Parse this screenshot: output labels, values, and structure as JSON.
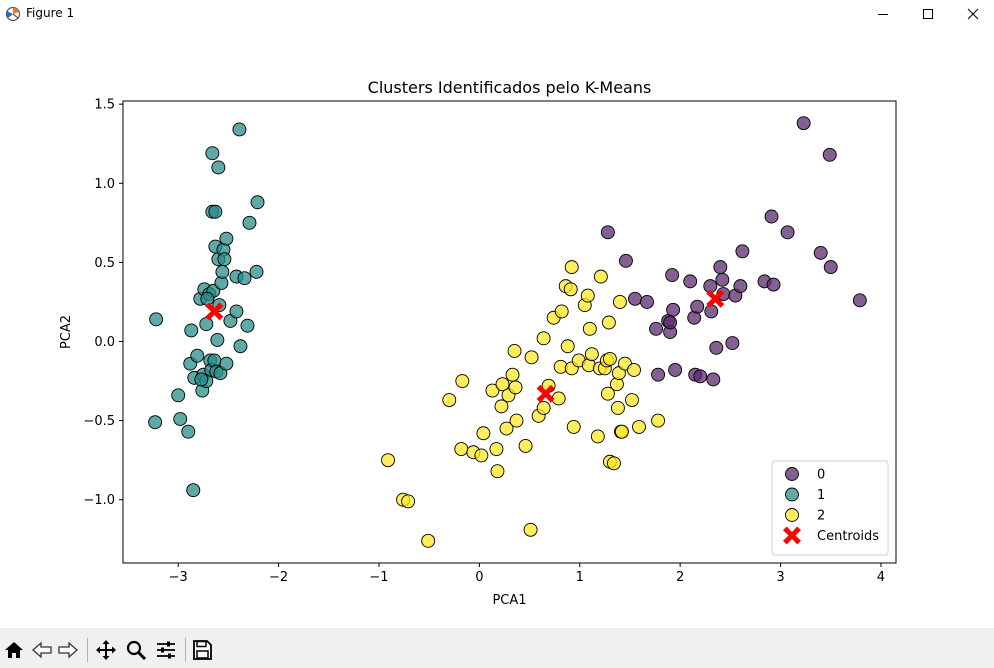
{
  "window": {
    "title": "Figure 1",
    "icons": [
      "app-icon",
      "minimize-icon",
      "maximize-icon",
      "close-icon"
    ]
  },
  "toolbar": {
    "tools": [
      {
        "name": "home-icon"
      },
      {
        "name": "back-icon"
      },
      {
        "name": "forward-icon"
      },
      {
        "name": "pan-icon"
      },
      {
        "name": "zoom-icon"
      },
      {
        "name": "configure-subplots-icon"
      },
      {
        "name": "save-icon"
      }
    ]
  },
  "colors": {
    "cluster0": "#5b2a6e",
    "cluster1": "#2a8c8a",
    "cluster2": "#fde725",
    "centroid": "#ff0000"
  },
  "chart_data": {
    "type": "scatter",
    "title": "Clusters Identificados pelo K-Means",
    "xlabel": "PCA1",
    "ylabel": "PCA2",
    "xlim": [
      -3.55,
      4.15
    ],
    "ylim": [
      -1.4,
      1.52
    ],
    "xticks": [
      -3,
      -2,
      -1,
      0,
      1,
      2,
      3,
      4
    ],
    "yticks": [
      -1.0,
      -0.5,
      0.0,
      0.5,
      1.0,
      1.5
    ],
    "xtick_labels": [
      "−3",
      "−2",
      "−1",
      "0",
      "1",
      "2",
      "3",
      "4"
    ],
    "ytick_labels": [
      "−1.0",
      "−0.5",
      "0.0",
      "0.5",
      "1.0",
      "1.5"
    ],
    "grid": false,
    "legend_position": "lower right",
    "series": [
      {
        "name": "0",
        "color": "#5b2a6e",
        "points": [
          [
            1.28,
            0.69
          ],
          [
            1.46,
            0.51
          ],
          [
            1.55,
            0.27
          ],
          [
            1.67,
            0.25
          ],
          [
            1.76,
            0.08
          ],
          [
            1.88,
            0.13
          ],
          [
            1.9,
            0.06
          ],
          [
            1.92,
            0.42
          ],
          [
            1.93,
            0.2
          ],
          [
            1.95,
            -0.18
          ],
          [
            2.1,
            0.38
          ],
          [
            2.14,
            0.15
          ],
          [
            2.15,
            -0.21
          ],
          [
            2.17,
            0.22
          ],
          [
            2.3,
            0.35
          ],
          [
            2.31,
            0.19
          ],
          [
            2.33,
            -0.24
          ],
          [
            2.36,
            -0.04
          ],
          [
            2.4,
            0.47
          ],
          [
            2.42,
            0.39
          ],
          [
            2.43,
            0.3
          ],
          [
            2.52,
            -0.01
          ],
          [
            2.55,
            0.29
          ],
          [
            2.6,
            0.35
          ],
          [
            2.62,
            0.57
          ],
          [
            2.84,
            0.38
          ],
          [
            2.91,
            0.79
          ],
          [
            2.93,
            0.36
          ],
          [
            3.07,
            0.69
          ],
          [
            3.23,
            1.38
          ],
          [
            3.4,
            0.56
          ],
          [
            3.49,
            1.18
          ],
          [
            3.5,
            0.47
          ],
          [
            3.79,
            0.26
          ],
          [
            1.78,
            -0.21
          ],
          [
            2.2,
            -0.22
          ],
          [
            1.9,
            0.12
          ]
        ]
      },
      {
        "name": "1",
        "color": "#2a8c8a",
        "points": [
          [
            -3.22,
            0.14
          ],
          [
            -3.23,
            -0.51
          ],
          [
            -3.0,
            -0.34
          ],
          [
            -2.98,
            -0.49
          ],
          [
            -2.9,
            -0.57
          ],
          [
            -2.88,
            -0.14
          ],
          [
            -2.87,
            0.07
          ],
          [
            -2.85,
            -0.94
          ],
          [
            -2.84,
            -0.23
          ],
          [
            -2.81,
            -0.09
          ],
          [
            -2.78,
            0.27
          ],
          [
            -2.76,
            -0.31
          ],
          [
            -2.75,
            -0.21
          ],
          [
            -2.74,
            0.33
          ],
          [
            -2.72,
            0.11
          ],
          [
            -2.72,
            -0.25
          ],
          [
            -2.69,
            0.3
          ],
          [
            -2.68,
            -0.12
          ],
          [
            -2.67,
            -0.18
          ],
          [
            -2.66,
            0.82
          ],
          [
            -2.66,
            1.19
          ],
          [
            -2.65,
            0.32
          ],
          [
            -2.64,
            -0.12
          ],
          [
            -2.63,
            0.82
          ],
          [
            -2.63,
            0.6
          ],
          [
            -2.62,
            -0.19
          ],
          [
            -2.61,
            0.01
          ],
          [
            -2.6,
            1.1
          ],
          [
            -2.6,
            0.52
          ],
          [
            -2.59,
            0.23
          ],
          [
            -2.58,
            -0.2
          ],
          [
            -2.57,
            0.37
          ],
          [
            -2.56,
            0.44
          ],
          [
            -2.55,
            0.58
          ],
          [
            -2.54,
            0.52
          ],
          [
            -2.52,
            0.65
          ],
          [
            -2.52,
            -0.14
          ],
          [
            -2.48,
            0.13
          ],
          [
            -2.42,
            0.41
          ],
          [
            -2.42,
            0.19
          ],
          [
            -2.39,
            1.34
          ],
          [
            -2.38,
            -0.03
          ],
          [
            -2.34,
            0.4
          ],
          [
            -2.31,
            0.1
          ],
          [
            -2.29,
            0.75
          ],
          [
            -2.22,
            0.44
          ],
          [
            -2.21,
            0.88
          ],
          [
            -2.71,
            0.27
          ],
          [
            -2.77,
            -0.24
          ]
        ]
      },
      {
        "name": "2",
        "color": "#fde725",
        "points": [
          [
            -0.91,
            -0.75
          ],
          [
            -0.76,
            -1.0
          ],
          [
            -0.71,
            -1.01
          ],
          [
            -0.51,
            -1.26
          ],
          [
            -0.3,
            -0.37
          ],
          [
            -0.18,
            -0.68
          ],
          [
            -0.17,
            -0.25
          ],
          [
            -0.06,
            -0.7
          ],
          [
            0.02,
            -0.72
          ],
          [
            0.04,
            -0.58
          ],
          [
            0.13,
            -0.31
          ],
          [
            0.17,
            -0.68
          ],
          [
            0.18,
            -0.82
          ],
          [
            0.22,
            -0.41
          ],
          [
            0.23,
            -0.27
          ],
          [
            0.27,
            -0.55
          ],
          [
            0.29,
            -0.34
          ],
          [
            0.33,
            -0.21
          ],
          [
            0.35,
            -0.06
          ],
          [
            0.36,
            -0.29
          ],
          [
            0.37,
            -0.5
          ],
          [
            0.46,
            -0.66
          ],
          [
            0.51,
            -1.19
          ],
          [
            0.52,
            -0.1
          ],
          [
            0.59,
            -0.47
          ],
          [
            0.64,
            -0.42
          ],
          [
            0.64,
            0.02
          ],
          [
            0.69,
            -0.28
          ],
          [
            0.74,
            0.15
          ],
          [
            0.79,
            -0.36
          ],
          [
            0.81,
            -0.16
          ],
          [
            0.82,
            0.19
          ],
          [
            0.86,
            0.35
          ],
          [
            0.88,
            -0.03
          ],
          [
            0.91,
            0.33
          ],
          [
            0.92,
            -0.17
          ],
          [
            0.92,
            0.47
          ],
          [
            0.94,
            -0.54
          ],
          [
            0.99,
            -0.12
          ],
          [
            1.05,
            0.23
          ],
          [
            1.08,
            0.29
          ],
          [
            1.09,
            -0.15
          ],
          [
            1.1,
            0.08
          ],
          [
            1.12,
            -0.08
          ],
          [
            1.18,
            -0.6
          ],
          [
            1.2,
            -0.17
          ],
          [
            1.21,
            0.41
          ],
          [
            1.25,
            -0.17
          ],
          [
            1.27,
            -0.12
          ],
          [
            1.28,
            -0.33
          ],
          [
            1.29,
            0.12
          ],
          [
            1.3,
            -0.11
          ],
          [
            1.3,
            -0.76
          ],
          [
            1.34,
            -0.77
          ],
          [
            1.37,
            -0.27
          ],
          [
            1.38,
            -0.42
          ],
          [
            1.39,
            -0.2
          ],
          [
            1.4,
            0.25
          ],
          [
            1.41,
            -0.57
          ],
          [
            1.45,
            -0.14
          ],
          [
            1.52,
            -0.37
          ],
          [
            1.54,
            -0.18
          ],
          [
            1.59,
            -0.54
          ],
          [
            1.78,
            -0.5
          ],
          [
            1.42,
            -0.57
          ]
        ]
      }
    ],
    "centroids": {
      "name": "Centroids",
      "color": "#ff0000",
      "points": [
        [
          -2.64,
          0.19
        ],
        [
          0.66,
          -0.33
        ],
        [
          2.35,
          0.27
        ]
      ]
    }
  }
}
